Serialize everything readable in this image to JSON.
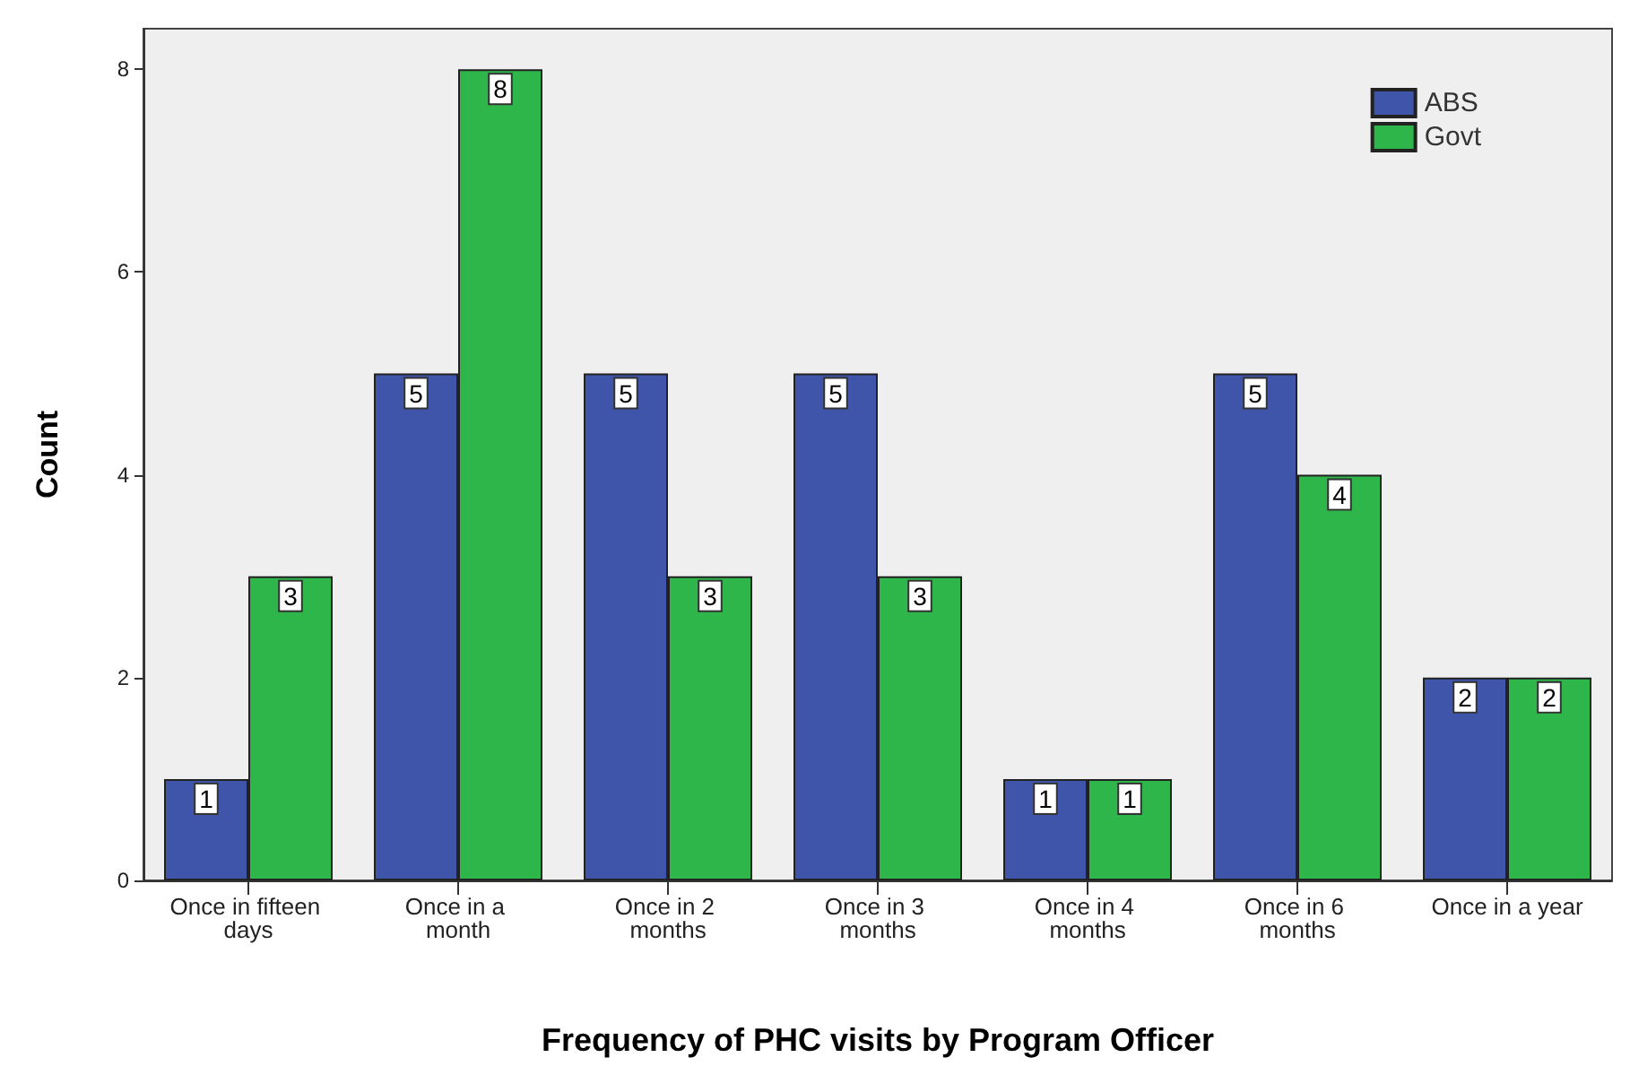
{
  "chart_data": {
    "type": "bar",
    "xlabel": "Frequency of PHC visits by Program Officer",
    "ylabel": "Count",
    "categories": [
      "Once in fifteen days",
      "Once in a month",
      "Once in 2 months",
      "Once in 3 months",
      "Once in 4 months",
      "Once in 6 months",
      "Once in a year"
    ],
    "series": [
      {
        "name": "ABS",
        "color": "#3f55a9",
        "values": [
          1,
          5,
          5,
          5,
          1,
          5,
          2
        ]
      },
      {
        "name": "Govt",
        "color": "#2fb64a",
        "values": [
          3,
          8,
          3,
          3,
          1,
          4,
          2
        ]
      }
    ],
    "ylim": [
      0,
      8.4
    ],
    "yticks": [
      0,
      2,
      4,
      6,
      8
    ],
    "grid": false,
    "legend": "top right",
    "data_labels": true
  }
}
